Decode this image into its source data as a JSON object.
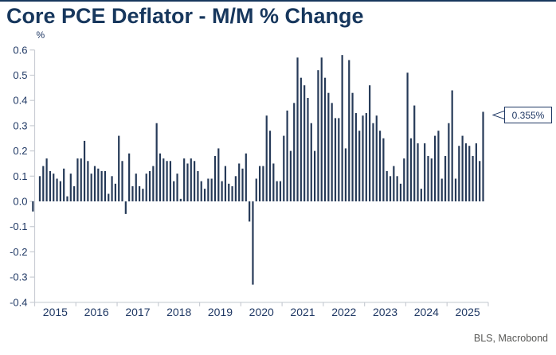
{
  "page": {
    "title": "Core PCE Deflator - M/M % Change",
    "source": "BLS, Macrobond",
    "unit_label": "%",
    "last_value_label": "0.355%"
  },
  "colors": {
    "title": "#17375d",
    "bar": "#263a58",
    "axis": "#c9cdd4",
    "tick_label": "#1f3864",
    "source_text": "#595957",
    "callout_border": "#1f3864",
    "top_rule": "#17375d"
  },
  "chart_data": {
    "type": "bar",
    "title": "Core PCE Deflator - M/M % Change",
    "ylabel": "%",
    "xlabel": "",
    "x_start": "2014-12",
    "frequency": "monthly",
    "ylim": [
      -0.4,
      0.6
    ],
    "y_ticks": [
      0.6,
      0.5,
      0.4,
      0.3,
      0.2,
      0.1,
      0.0,
      -0.1,
      -0.2,
      -0.3,
      -0.4
    ],
    "x_tick_labels": [
      "2015",
      "2016",
      "2017",
      "2018",
      "2019",
      "2020",
      "2021",
      "2022",
      "2023",
      "2024",
      "2025"
    ],
    "grid": "off",
    "legend": "none",
    "annotation": {
      "text": "0.355%",
      "points_to": "last bar (2025-11)"
    },
    "values": [
      -0.04,
      0.0,
      0.1,
      0.14,
      0.17,
      0.12,
      0.11,
      0.09,
      0.08,
      0.13,
      0.02,
      0.11,
      0.06,
      0.17,
      0.17,
      0.24,
      0.16,
      0.11,
      0.14,
      0.13,
      0.12,
      0.12,
      0.03,
      0.1,
      0.07,
      0.26,
      0.16,
      -0.05,
      0.19,
      0.06,
      0.11,
      0.06,
      0.05,
      0.11,
      0.12,
      0.14,
      0.31,
      0.19,
      0.17,
      0.16,
      0.16,
      0.08,
      0.11,
      0.01,
      0.17,
      0.15,
      0.17,
      0.16,
      0.12,
      0.08,
      0.05,
      0.09,
      0.09,
      0.18,
      0.21,
      0.08,
      0.14,
      0.07,
      0.06,
      0.1,
      0.15,
      0.13,
      0.19,
      -0.08,
      -0.33,
      0.09,
      0.14,
      0.14,
      0.34,
      0.28,
      0.15,
      0.08,
      0.08,
      0.26,
      0.36,
      0.2,
      0.39,
      0.57,
      0.49,
      0.46,
      0.41,
      0.31,
      0.2,
      0.52,
      0.57,
      0.49,
      0.43,
      0.39,
      0.33,
      0.33,
      0.58,
      0.21,
      0.56,
      0.43,
      0.35,
      0.28,
      0.34,
      0.35,
      0.46,
      0.31,
      0.34,
      0.28,
      0.25,
      0.12,
      0.1,
      0.14,
      0.1,
      0.07,
      0.17,
      0.51,
      0.25,
      0.38,
      0.23,
      0.05,
      0.23,
      0.18,
      0.17,
      0.26,
      0.28,
      0.09,
      0.18,
      0.31,
      0.44,
      0.09,
      0.22,
      0.26,
      0.23,
      0.22,
      0.18,
      0.23,
      0.16,
      0.355
    ]
  }
}
